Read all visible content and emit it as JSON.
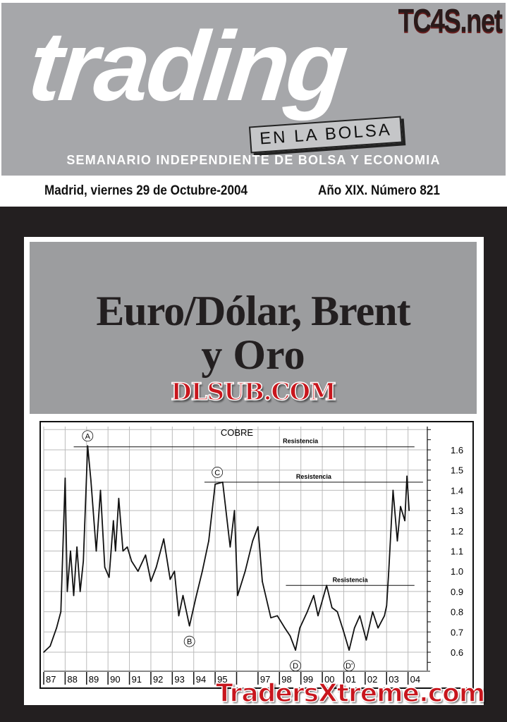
{
  "masthead": {
    "logo": "trading",
    "logo_tag": "EN LA BOLSA",
    "subtitle": "SEMANARIO INDEPENDIENTE DE BOLSA Y ECONOMIA",
    "watermark": "TC4S.net"
  },
  "issue_line": {
    "date": "Madrid, viernes 29 de Octubre-2004",
    "issue": "Año XIX. Número 821"
  },
  "cover": {
    "headline_line1": "Euro/Dólar, Brent",
    "headline_line2": "y Oro",
    "watermark_center": "DLSUB.COM",
    "watermark_bottom": "TradersXtreme.com"
  },
  "colors": {
    "masthead_gray": "#a6a7aa",
    "dark_band": "#231f20",
    "watermark_red": "#c8161d"
  },
  "chart_data": {
    "type": "line",
    "title": "COBRE",
    "x_tick_labels": [
      "87",
      "88",
      "89",
      "90",
      "91",
      "92",
      "93",
      "94",
      "95",
      "",
      "97",
      "98",
      "99",
      "00",
      "01",
      "02",
      "03",
      "04"
    ],
    "xlim": [
      1987,
      2004.9
    ],
    "ylim": [
      0.5,
      1.7
    ],
    "y_ticks": [
      0.6,
      0.7,
      0.8,
      0.9,
      1.0,
      1.1,
      1.2,
      1.3,
      1.4,
      1.5,
      1.6
    ],
    "y_tick_labels": [
      "0.6",
      "0.7",
      "0.8",
      "0.9",
      "1.0",
      "1.1",
      "1.2",
      "1.3",
      "1.4",
      "1.5",
      "1.6"
    ],
    "y_axis_side": "right",
    "grid": true,
    "series": [
      {
        "x": [
          1987.0,
          1987.3,
          1987.6,
          1987.8,
          1988.0,
          1988.1,
          1988.25,
          1988.4,
          1988.55,
          1988.7,
          1988.85,
          1989.05,
          1989.2,
          1989.45,
          1989.65,
          1989.85,
          1990.05,
          1990.25,
          1990.35,
          1990.5,
          1990.7,
          1990.9,
          1991.1,
          1991.4,
          1991.75,
          1992.0,
          1992.25,
          1992.6,
          1992.9,
          1993.1,
          1993.3,
          1993.5,
          1993.8,
          1994.1,
          1994.4,
          1994.7,
          1995.0,
          1995.35,
          1995.7,
          1995.9,
          1996.05,
          1996.4,
          1996.75,
          1997.0,
          1997.2,
          1997.6,
          1997.9,
          1998.25,
          1998.5,
          1998.75,
          1998.95,
          1999.3,
          1999.6,
          1999.8,
          2000.2,
          2000.45,
          2000.7,
          2001.0,
          2001.25,
          2001.5,
          2001.75,
          2002.05,
          2002.35,
          2002.6,
          2002.9,
          2003.0,
          2003.1,
          2003.3,
          2003.5,
          2003.65,
          2003.85,
          2003.95,
          2004.05
        ],
        "y": [
          0.6,
          0.63,
          0.72,
          0.8,
          1.46,
          0.9,
          1.1,
          0.88,
          1.12,
          0.9,
          1.05,
          1.62,
          1.45,
          1.1,
          1.4,
          1.02,
          0.97,
          1.25,
          1.1,
          1.36,
          1.1,
          1.12,
          1.05,
          1.0,
          1.08,
          0.95,
          1.02,
          1.16,
          0.96,
          1.0,
          0.78,
          0.88,
          0.73,
          0.87,
          1.0,
          1.15,
          1.43,
          1.44,
          1.12,
          1.3,
          0.88,
          1.0,
          1.15,
          1.22,
          0.95,
          0.77,
          0.78,
          0.72,
          0.68,
          0.61,
          0.72,
          0.8,
          0.88,
          0.78,
          0.93,
          0.82,
          0.8,
          0.7,
          0.61,
          0.72,
          0.78,
          0.66,
          0.8,
          0.72,
          0.78,
          0.83,
          1.0,
          1.4,
          1.15,
          1.32,
          1.25,
          1.47,
          1.3
        ]
      }
    ],
    "reference_lines": [
      {
        "label": "Resistencia",
        "value": 1.615,
        "from": 1988.4,
        "to": 2004.3
      },
      {
        "label": "Resistencia",
        "value": 1.44,
        "from": 1994.5,
        "to": 2004.7
      },
      {
        "label": "Resistencia",
        "value": 0.93,
        "from": 1998.3,
        "to": 2004.3
      }
    ],
    "annotations": [
      {
        "label": "A",
        "x": 1989.05,
        "y": 1.62
      },
      {
        "label": "B",
        "x": 1993.8,
        "y": 0.73
      },
      {
        "label": "C",
        "x": 1995.1,
        "y": 1.44
      },
      {
        "label": "D",
        "x": 1998.75,
        "y": 0.61
      },
      {
        "label": "D'",
        "x": 2001.25,
        "y": 0.61
      }
    ]
  }
}
